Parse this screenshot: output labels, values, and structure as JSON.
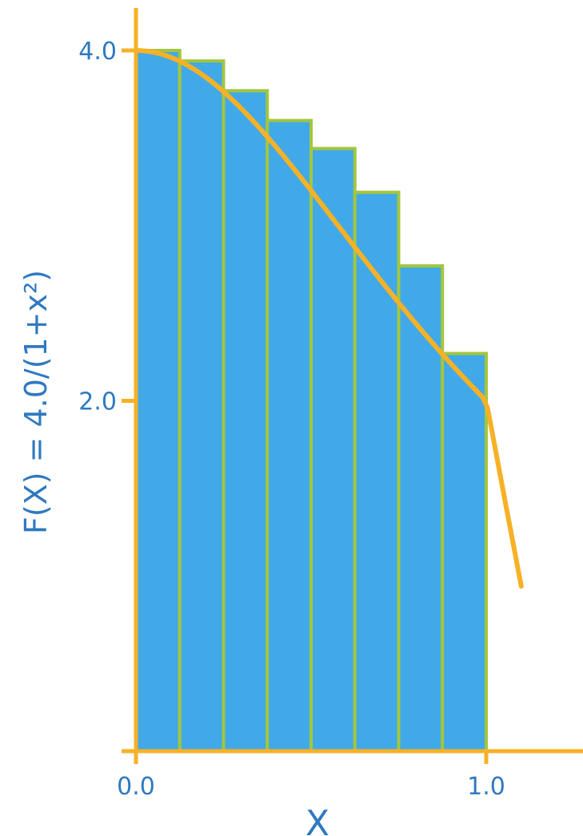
{
  "chart_data": {
    "type": "bar",
    "xlabel": "X",
    "ylabel": "F(X) = 4.0/(1+x²)",
    "x_ticks": [
      "0.0",
      "1.0"
    ],
    "y_ticks": [
      "2.0",
      "4.0"
    ],
    "xlim": [
      0.0,
      1.0
    ],
    "ylim": [
      0.0,
      4.0
    ],
    "bars": [
      {
        "x0": 0.0,
        "x1": 0.125,
        "value": 4.0
      },
      {
        "x0": 0.125,
        "x1": 0.25,
        "value": 3.94
      },
      {
        "x0": 0.25,
        "x1": 0.375,
        "value": 3.77
      },
      {
        "x0": 0.375,
        "x1": 0.5,
        "value": 3.6
      },
      {
        "x0": 0.5,
        "x1": 0.625,
        "value": 3.44
      },
      {
        "x0": 0.625,
        "x1": 0.75,
        "value": 3.19
      },
      {
        "x0": 0.75,
        "x1": 0.875,
        "value": 2.77
      },
      {
        "x0": 0.875,
        "x1": 1.0,
        "value": 2.27
      }
    ],
    "curve": {
      "function": "4.0/(1+x^2)",
      "x_range": [
        0.0,
        1.1
      ]
    },
    "grid": false,
    "legend": "none",
    "colors": {
      "bar_fill": "#41a9e8",
      "bar_stroke": "#a2c63f",
      "curve": "#f6b126",
      "axis": "#f6b126",
      "text": "#2f79c0"
    }
  }
}
